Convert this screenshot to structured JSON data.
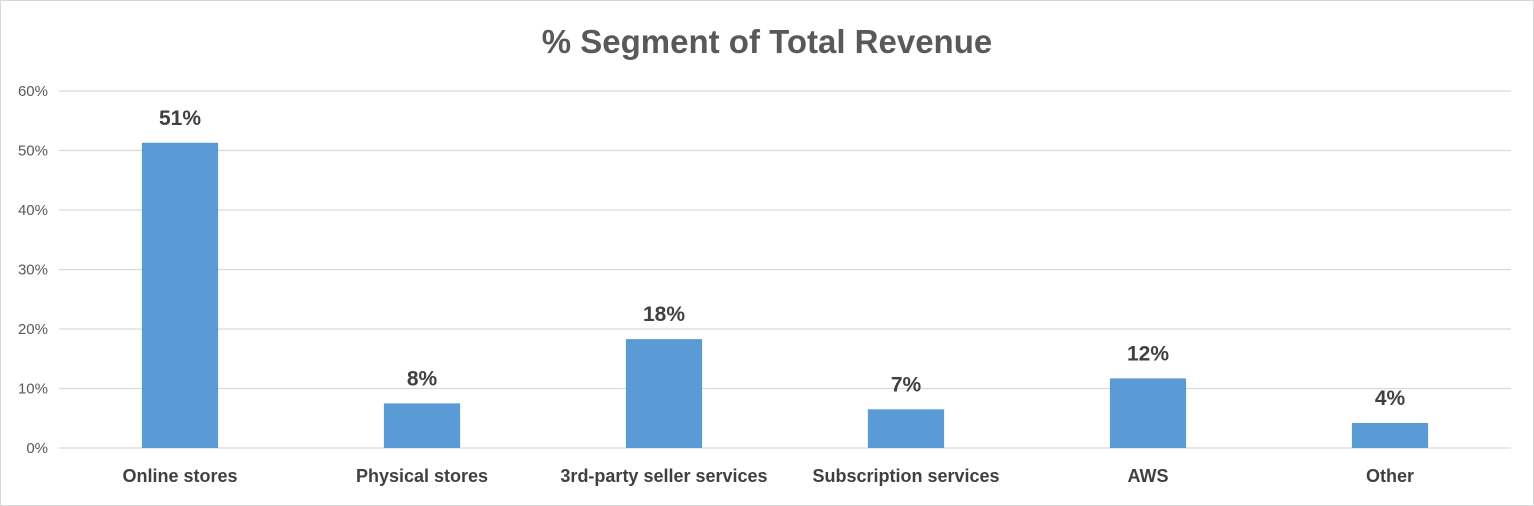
{
  "chart_data": {
    "type": "bar",
    "title": "% Segment of Total Revenue",
    "xlabel": "",
    "ylabel": "",
    "categories": [
      "Online stores",
      "Physical stores",
      "3rd-party seller services",
      "Subscription services",
      "AWS",
      "Other"
    ],
    "values": [
      51,
      8,
      18,
      7,
      12,
      4
    ],
    "bar_heights_pct": [
      51.3,
      7.5,
      18.3,
      6.5,
      11.7,
      4.2
    ],
    "data_labels": [
      "51%",
      "8%",
      "18%",
      "7%",
      "12%",
      "4%"
    ],
    "yticks": [
      "0%",
      "10%",
      "20%",
      "30%",
      "40%",
      "50%",
      "60%"
    ],
    "ylim": [
      0,
      60
    ],
    "grid": true,
    "legend": "none",
    "colors": {
      "bar": "#5b9bd5",
      "grid": "#d9d9d9",
      "title": "#595959",
      "labels": "#404040"
    }
  }
}
